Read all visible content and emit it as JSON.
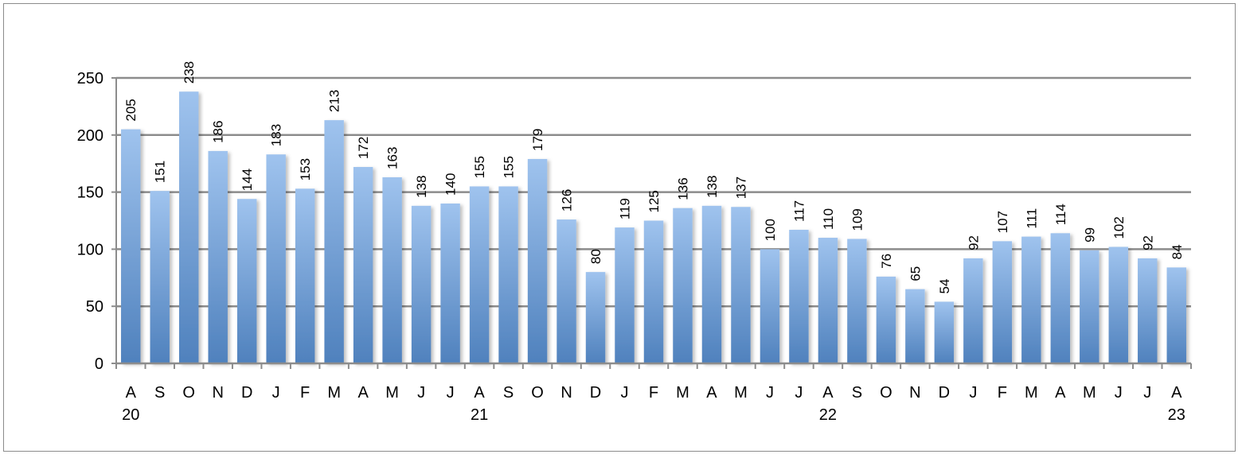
{
  "chart_data": {
    "type": "bar",
    "categories": [
      "A",
      "S",
      "O",
      "N",
      "D",
      "J",
      "F",
      "M",
      "A",
      "M",
      "J",
      "J",
      "A",
      "S",
      "O",
      "N",
      "D",
      "J",
      "F",
      "M",
      "A",
      "M",
      "J",
      "J",
      "A",
      "S",
      "O",
      "N",
      "D",
      "J",
      "F",
      "M",
      "A",
      "M",
      "J",
      "J",
      "A"
    ],
    "values": [
      205,
      151,
      238,
      186,
      144,
      183,
      153,
      213,
      172,
      163,
      138,
      140,
      155,
      155,
      179,
      126,
      80,
      119,
      125,
      136,
      138,
      137,
      100,
      117,
      110,
      109,
      76,
      65,
      54,
      92,
      107,
      111,
      114,
      99,
      102,
      92,
      84
    ],
    "year_labels": [
      {
        "category_index": 0,
        "label": "20"
      },
      {
        "category_index": 12,
        "label": "21"
      },
      {
        "category_index": 24,
        "label": "22"
      },
      {
        "category_index": 36,
        "label": "23"
      }
    ],
    "yticks": [
      0,
      50,
      100,
      150,
      200,
      250
    ],
    "ylim": [
      0,
      250
    ],
    "grid": true,
    "data_labels": true,
    "colors": {
      "bar_top": "#9fc3ee",
      "bar_bottom": "#4f81bd",
      "grid": "#8c8c8c",
      "axis": "#8c8c8c"
    }
  }
}
